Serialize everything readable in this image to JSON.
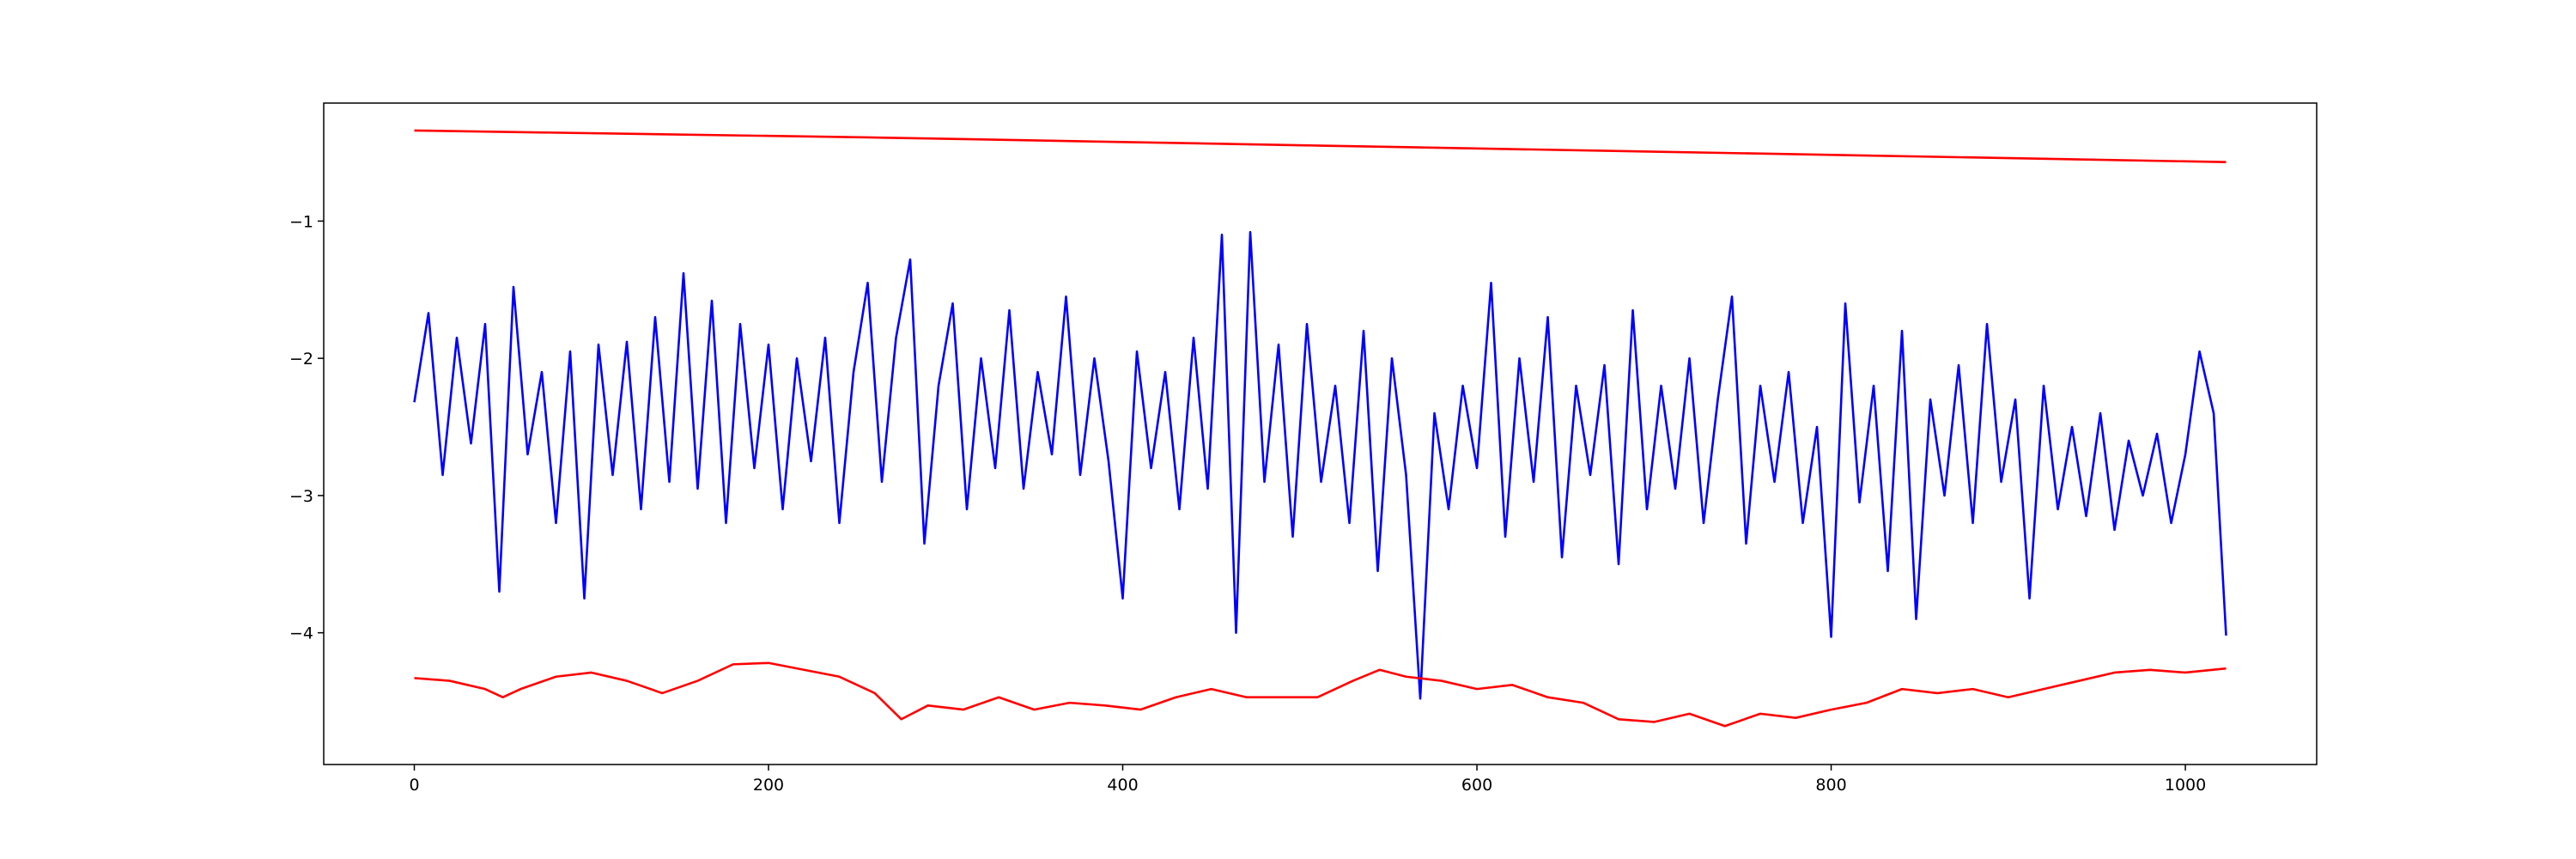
{
  "chart_data": {
    "type": "line",
    "xlim": [
      -51.15,
      1074.15
    ],
    "ylim": [
      -4.96,
      -0.14
    ],
    "xticks": [
      0,
      200,
      400,
      600,
      800,
      1000
    ],
    "yticks": [
      {
        "value": -4,
        "label": "−4"
      },
      {
        "value": -3,
        "label": "−3"
      },
      {
        "value": -2,
        "label": "−2"
      },
      {
        "value": -1,
        "label": "−1"
      }
    ],
    "series": [
      {
        "color": "blue",
        "x": [
          0,
          8,
          16,
          24,
          32,
          40,
          48,
          56,
          64,
          72,
          80,
          88,
          96,
          104,
          112,
          120,
          128,
          136,
          144,
          152,
          160,
          168,
          176,
          184,
          192,
          200,
          208,
          216,
          224,
          232,
          240,
          248,
          256,
          264,
          272,
          280,
          288,
          296,
          304,
          312,
          320,
          328,
          336,
          344,
          352,
          360,
          368,
          376,
          384,
          392,
          400,
          408,
          416,
          424,
          432,
          440,
          448,
          456,
          464,
          472,
          480,
          488,
          496,
          504,
          512,
          520,
          528,
          536,
          544,
          552,
          560,
          568,
          576,
          584,
          592,
          600,
          608,
          616,
          624,
          632,
          640,
          648,
          656,
          664,
          672,
          680,
          688,
          696,
          704,
          712,
          720,
          728,
          736,
          744,
          752,
          760,
          768,
          776,
          784,
          792,
          800,
          808,
          816,
          824,
          832,
          840,
          848,
          856,
          864,
          872,
          880,
          888,
          896,
          904,
          912,
          920,
          928,
          936,
          944,
          952,
          960,
          968,
          976,
          984,
          992,
          1000,
          1008,
          1016,
          1023
        ],
        "values": [
          -2.32,
          -1.67,
          -2.85,
          -1.85,
          -2.62,
          -1.75,
          -3.7,
          -1.48,
          -2.7,
          -2.1,
          -3.2,
          -1.95,
          -3.75,
          -1.9,
          -2.85,
          -1.88,
          -3.1,
          -1.7,
          -2.9,
          -1.38,
          -2.95,
          -1.58,
          -3.2,
          -1.75,
          -2.8,
          -1.9,
          -3.1,
          -2.0,
          -2.75,
          -1.85,
          -3.2,
          -2.1,
          -1.45,
          -2.9,
          -1.85,
          -1.28,
          -3.35,
          -2.2,
          -1.6,
          -3.1,
          -2.0,
          -2.8,
          -1.65,
          -2.95,
          -2.1,
          -2.7,
          -1.55,
          -2.85,
          -2.0,
          -2.75,
          -3.75,
          -1.95,
          -2.8,
          -2.1,
          -3.1,
          -1.85,
          -2.95,
          -1.1,
          -4.0,
          -1.08,
          -2.9,
          -1.9,
          -3.3,
          -1.75,
          -2.9,
          -2.2,
          -3.2,
          -1.8,
          -3.55,
          -2.0,
          -2.85,
          -4.48,
          -2.4,
          -3.1,
          -2.2,
          -2.8,
          -1.45,
          -3.3,
          -2.0,
          -2.9,
          -1.7,
          -3.45,
          -2.2,
          -2.85,
          -2.05,
          -3.5,
          -1.65,
          -3.1,
          -2.2,
          -2.95,
          -2.0,
          -3.2,
          -2.3,
          -1.55,
          -3.35,
          -2.2,
          -2.9,
          -2.1,
          -3.2,
          -2.5,
          -4.03,
          -1.6,
          -3.05,
          -2.2,
          -3.55,
          -1.8,
          -3.9,
          -2.3,
          -3.0,
          -2.05,
          -3.2,
          -1.75,
          -2.9,
          -2.3,
          -3.75,
          -2.2,
          -3.1,
          -2.5,
          -3.15,
          -2.4,
          -3.25,
          -2.6,
          -3.0,
          -2.55,
          -3.2,
          -2.7,
          -1.95,
          -2.4,
          -4.02
        ]
      },
      {
        "color": "red",
        "x": [
          0,
          256,
          512,
          768,
          1023
        ],
        "values": [
          -0.34,
          -0.39,
          -0.45,
          -0.51,
          -0.57
        ]
      },
      {
        "color": "red",
        "x": [
          0,
          20,
          40,
          50,
          60,
          80,
          100,
          120,
          140,
          160,
          180,
          200,
          220,
          240,
          260,
          275,
          290,
          310,
          330,
          350,
          370,
          390,
          410,
          430,
          450,
          470,
          490,
          510,
          530,
          545,
          560,
          580,
          600,
          620,
          640,
          660,
          680,
          700,
          720,
          740,
          760,
          780,
          800,
          820,
          840,
          860,
          880,
          900,
          920,
          940,
          960,
          980,
          1000,
          1023
        ],
        "values": [
          -4.33,
          -4.35,
          -4.41,
          -4.47,
          -4.41,
          -4.32,
          -4.29,
          -4.35,
          -4.44,
          -4.35,
          -4.23,
          -4.22,
          -4.27,
          -4.32,
          -4.44,
          -4.63,
          -4.53,
          -4.56,
          -4.47,
          -4.56,
          -4.51,
          -4.53,
          -4.56,
          -4.47,
          -4.41,
          -4.47,
          -4.47,
          -4.47,
          -4.35,
          -4.27,
          -4.32,
          -4.35,
          -4.41,
          -4.38,
          -4.47,
          -4.51,
          -4.63,
          -4.65,
          -4.59,
          -4.68,
          -4.59,
          -4.62,
          -4.56,
          -4.51,
          -4.41,
          -4.44,
          -4.41,
          -4.47,
          -4.41,
          -4.35,
          -4.29,
          -4.27,
          -4.29,
          -4.26
        ]
      }
    ]
  }
}
